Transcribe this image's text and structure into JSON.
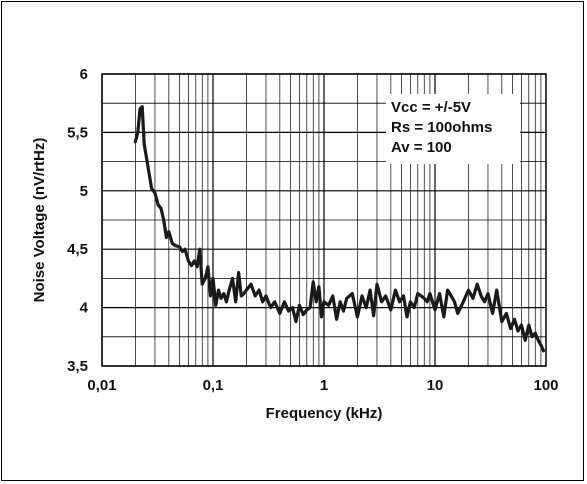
{
  "chart_data": {
    "type": "line",
    "xscale": "log",
    "xlim": [
      0.01,
      100
    ],
    "ylim": [
      3.5,
      6
    ],
    "xlabel": "Frequency (kHz)",
    "ylabel": "Noise Voltage (nV/rtHz)",
    "xtick_labels": [
      "0,01",
      "0,1",
      "1",
      "10",
      "100"
    ],
    "ytick_labels": [
      "3,5",
      "4",
      "4,5",
      "5",
      "5,5",
      "6"
    ],
    "grid": true,
    "annotation_lines": [
      "Vcc = +/-5V",
      "Rs = 100ohms",
      "Av =  100"
    ],
    "annotation_position": "top-right",
    "line_color": "#1a1a1a",
    "series": [
      {
        "x": [
          0.02,
          0.021,
          0.022,
          0.023,
          0.024,
          0.026,
          0.028,
          0.03,
          0.032,
          0.034,
          0.036,
          0.038,
          0.04,
          0.043,
          0.046,
          0.05,
          0.053,
          0.056,
          0.06,
          0.064,
          0.068,
          0.072,
          0.076,
          0.08,
          0.085,
          0.09,
          0.095,
          0.1,
          0.106,
          0.112,
          0.118,
          0.125,
          0.132,
          0.14,
          0.15,
          0.16,
          0.17,
          0.18,
          0.19,
          0.2,
          0.22,
          0.24,
          0.26,
          0.28,
          0.3,
          0.33,
          0.36,
          0.4,
          0.44,
          0.48,
          0.52,
          0.56,
          0.6,
          0.65,
          0.7,
          0.75,
          0.8,
          0.85,
          0.9,
          0.95,
          1.0,
          1.1,
          1.2,
          1.3,
          1.4,
          1.5,
          1.6,
          1.8,
          2.0,
          2.2,
          2.4,
          2.6,
          2.8,
          3.0,
          3.3,
          3.6,
          4.0,
          4.4,
          4.8,
          5.2,
          5.6,
          6.0,
          6.5,
          7.0,
          7.5,
          8.0,
          8.5,
          9.0,
          10,
          11,
          12,
          13,
          14,
          15,
          16,
          18,
          20,
          22,
          24,
          26,
          28,
          30,
          33,
          36,
          40,
          44,
          48,
          52,
          56,
          60,
          65,
          70,
          75,
          80,
          85,
          90,
          95
        ],
        "y": [
          5.42,
          5.5,
          5.7,
          5.72,
          5.4,
          5.2,
          5.02,
          4.98,
          4.88,
          4.85,
          4.75,
          4.6,
          4.65,
          4.55,
          4.53,
          4.52,
          4.48,
          4.5,
          4.4,
          4.36,
          4.4,
          4.35,
          4.5,
          4.2,
          4.25,
          4.35,
          4.1,
          4.25,
          4.02,
          4.15,
          4.08,
          4.12,
          4.05,
          4.15,
          4.25,
          4.05,
          4.3,
          4.1,
          4.12,
          4.15,
          4.2,
          4.1,
          4.15,
          4.05,
          4.1,
          4.0,
          4.05,
          3.95,
          4.05,
          3.97,
          4.0,
          3.88,
          4.02,
          3.94,
          3.98,
          4.0,
          4.22,
          4.05,
          4.18,
          3.92,
          4.05,
          4.02,
          4.1,
          3.9,
          4.05,
          3.97,
          4.08,
          4.12,
          3.92,
          4.1,
          4.0,
          4.15,
          3.93,
          4.2,
          4.05,
          4.1,
          3.98,
          4.15,
          4.05,
          4.1,
          3.92,
          4.05,
          4.0,
          4.12,
          4.1,
          4.08,
          4.05,
          4.12,
          3.98,
          4.12,
          3.92,
          4.15,
          4.1,
          4.05,
          3.95,
          4.05,
          4.15,
          4.08,
          4.2,
          4.1,
          4.05,
          4.12,
          3.95,
          4.15,
          3.88,
          3.95,
          3.82,
          3.9,
          3.8,
          3.85,
          3.72,
          3.85,
          3.75,
          3.78,
          3.72,
          3.68,
          3.63
        ]
      }
    ]
  }
}
